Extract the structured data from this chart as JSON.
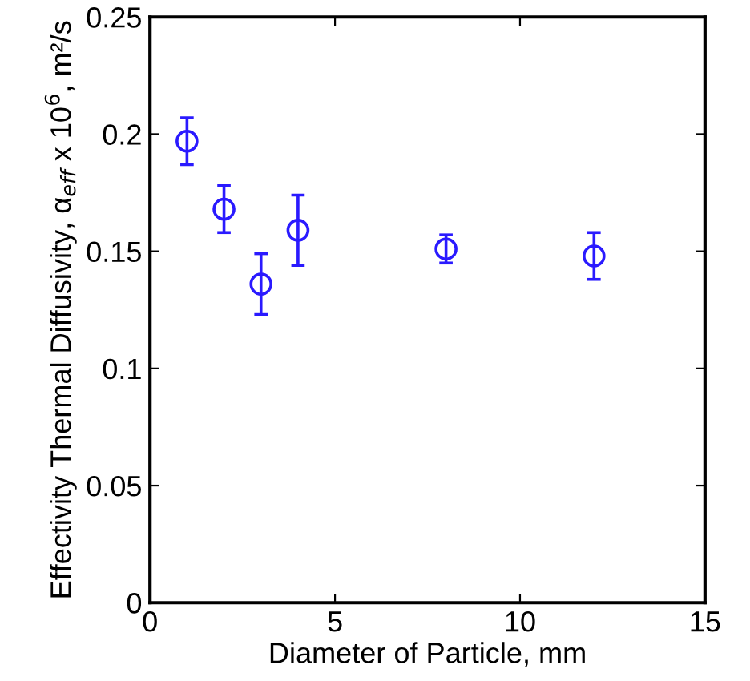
{
  "chart_data": {
    "type": "scatter",
    "xlabel": "Diameter of Particle, mm",
    "ylabel": "Effectivity Thermal Diffusivity, α$_{eff}$ x 10$^{6}$, m²/s",
    "x": [
      1,
      2,
      3,
      4,
      8,
      12
    ],
    "values": [
      0.197,
      0.168,
      0.136,
      0.159,
      0.151,
      0.148
    ],
    "errors": [
      0.01,
      0.01,
      0.013,
      0.015,
      0.006,
      0.01
    ],
    "color": "#2a1aff",
    "marker": "circle",
    "xlim": [
      0,
      15
    ],
    "xticks": [
      0,
      5,
      10,
      15
    ],
    "ylim": [
      0,
      0.25
    ],
    "yticks": [
      {
        "value": 0,
        "label": "0"
      },
      {
        "value": 0.05,
        "label": "0.05"
      },
      {
        "value": 0.1,
        "label": "0.1"
      },
      {
        "value": 0.15,
        "label": "0.15"
      },
      {
        "value": 0.2,
        "label": "0.2"
      },
      {
        "value": 0.25,
        "label": "0.25"
      }
    ],
    "grid": false
  }
}
